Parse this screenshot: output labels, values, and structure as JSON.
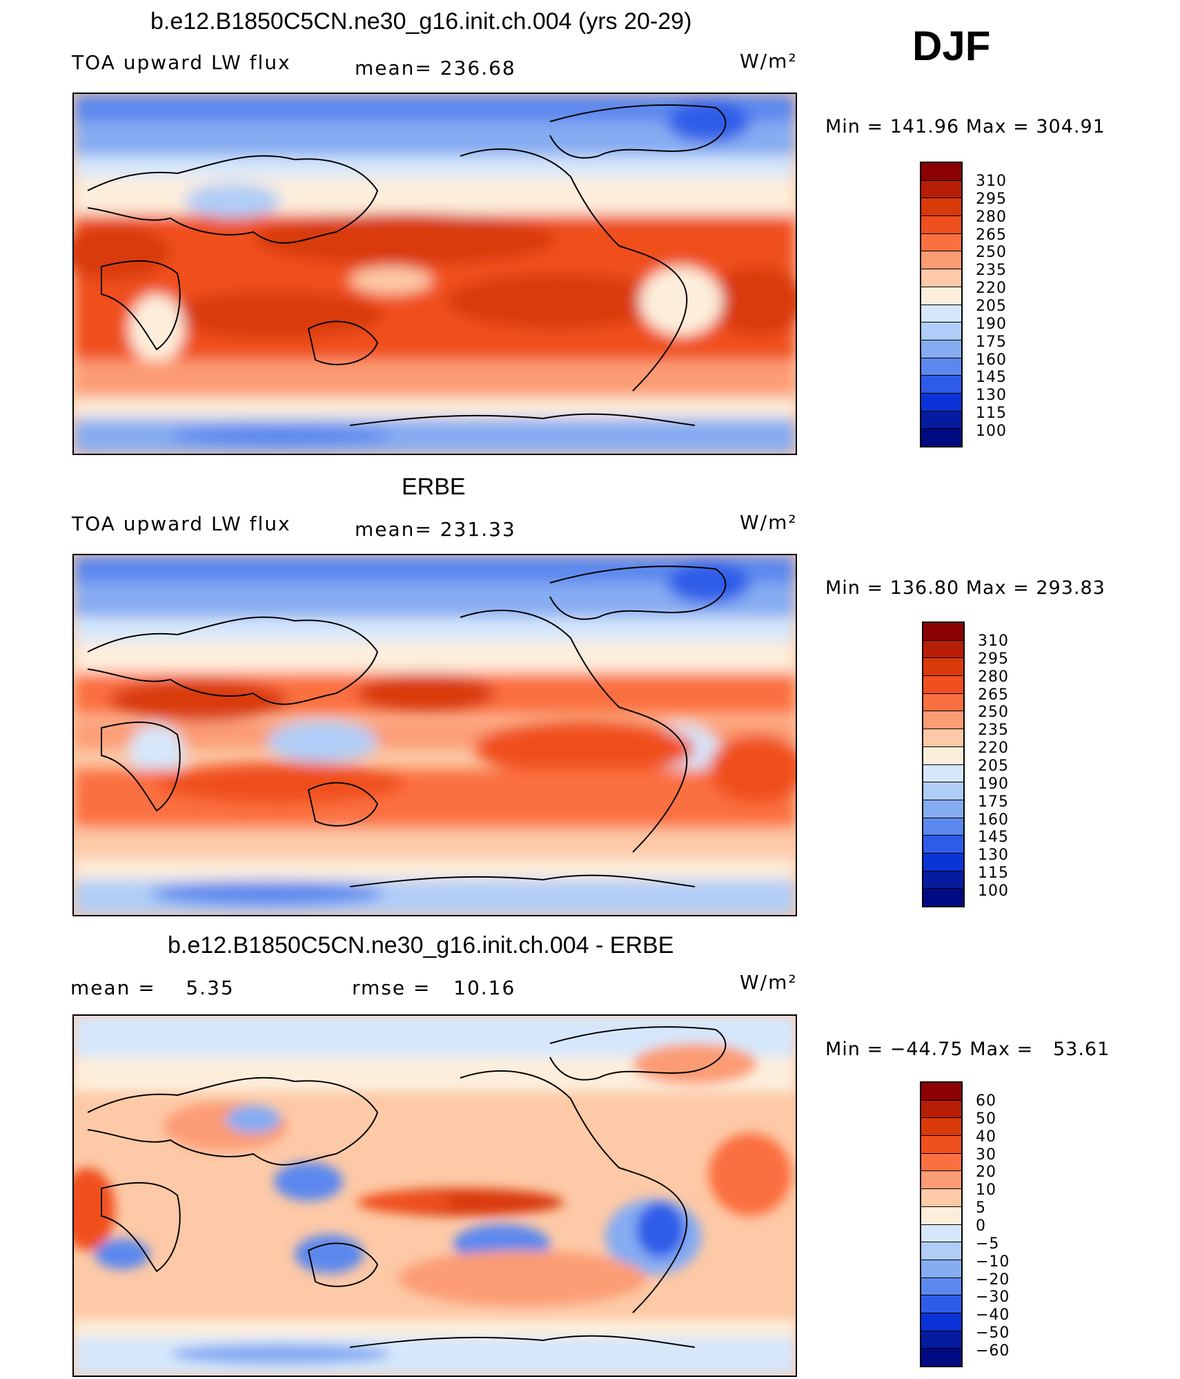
{
  "season": "DJF",
  "units": "W/m²",
  "panel1": {
    "title": "b.e12.B1850C5CN.ne30_g16.init.ch.004 (yrs 20-29)",
    "variable": "TOA upward LW flux",
    "mean": "mean= 236.68",
    "minmax": "Min = 141.96 Max = 304.91"
  },
  "panel2": {
    "title": "ERBE",
    "variable": "TOA upward LW flux",
    "mean": "mean= 231.33",
    "minmax": "Min = 136.80 Max = 293.83"
  },
  "panel3": {
    "title": "b.e12.B1850C5CN.ne30_g16.init.ch.004 - ERBE",
    "mean": "mean =    5.35",
    "rmse": "rmse =   10.16",
    "minmax": "Min = −44.75 Max =   53.61"
  },
  "colorbar_abs": {
    "labels": [
      "310",
      "295",
      "280",
      "265",
      "250",
      "235",
      "220",
      "205",
      "190",
      "175",
      "160",
      "145",
      "130",
      "115",
      "100"
    ],
    "colors": [
      "#8b0000",
      "#b81e05",
      "#d93a0a",
      "#f0501e",
      "#fb7041",
      "#fc9c74",
      "#fdc9a6",
      "#fdeedc",
      "#d6e7fb",
      "#b0cdf7",
      "#86acf2",
      "#5c88ee",
      "#2d5de8",
      "#0a34d8",
      "#061ca0",
      "#000a82"
    ]
  },
  "colorbar_diff": {
    "labels": [
      "60",
      "50",
      "40",
      "30",
      "20",
      "10",
      "5",
      "0",
      "−5",
      "−10",
      "−20",
      "−30",
      "−40",
      "−50",
      "−60"
    ],
    "colors": [
      "#8b0000",
      "#b81e05",
      "#d93a0a",
      "#f0501e",
      "#fb7041",
      "#fc9c74",
      "#fdc9a6",
      "#fdeedc",
      "#d6e7fb",
      "#b0cdf7",
      "#86acf2",
      "#5c88ee",
      "#2d5de8",
      "#0a34d8",
      "#061ca0",
      "#000a82"
    ]
  }
}
